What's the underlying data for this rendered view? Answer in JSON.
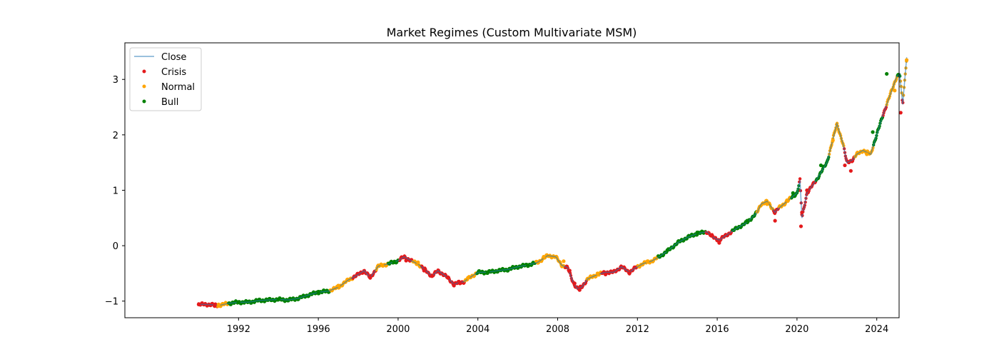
{
  "chart_data": {
    "type": "line",
    "title": "Market Regimes (Custom Multivariate MSM)",
    "xlabel": "",
    "ylabel": "",
    "xlim": [
      1986.3,
      2025.12
    ],
    "ylim": [
      -1.3,
      3.66
    ],
    "x_ticks": [
      1992,
      1996,
      2000,
      2004,
      2008,
      2012,
      2016,
      2020,
      2024
    ],
    "y_ticks": [
      -1,
      0,
      1,
      2,
      3
    ],
    "grid": false,
    "legend_placement": "top-left",
    "legend": [
      "Close",
      "Crisis",
      "Normal",
      "Bull"
    ],
    "colors": {
      "Close": "#1f77b4",
      "Crisis": "#e41a1c",
      "Normal": "#ffa500",
      "Bull": "#008000"
    },
    "series": [
      {
        "name": "Close",
        "x": [
          1990.0,
          1990.5,
          1991.0,
          1991.5,
          1992.0,
          1992.5,
          1993.0,
          1993.5,
          1994.0,
          1994.5,
          1995.0,
          1995.5,
          1996.0,
          1996.5,
          1997.0,
          1997.5,
          1998.0,
          1998.3,
          1998.6,
          1999.0,
          1999.5,
          2000.0,
          2000.3,
          2000.7,
          2001.0,
          2001.3,
          2001.7,
          2002.0,
          2002.5,
          2002.8,
          2003.0,
          2003.3,
          2003.7,
          2004.0,
          2004.5,
          2005.0,
          2005.5,
          2006.0,
          2006.5,
          2007.0,
          2007.5,
          2007.9,
          2008.2,
          2008.5,
          2008.8,
          2009.0,
          2009.2,
          2009.5,
          2010.0,
          2010.4,
          2010.8,
          2011.2,
          2011.6,
          2011.9,
          2012.3,
          2012.7,
          2013.0,
          2013.5,
          2014.0,
          2014.5,
          2015.0,
          2015.5,
          2015.8,
          2016.1,
          2016.5,
          2017.0,
          2017.5,
          2018.0,
          2018.2,
          2018.5,
          2018.9,
          2019.0,
          2019.5,
          2020.0,
          2020.15,
          2020.25,
          2020.5,
          2021.0,
          2021.5,
          2022.0,
          2022.3,
          2022.5,
          2022.8,
          2023.0,
          2023.3,
          2023.7,
          2023.8,
          2024.0,
          2024.3,
          2024.6,
          2025.0,
          2025.15,
          2025.3,
          2025.5
        ],
        "y": [
          -1.06,
          -1.06,
          -1.08,
          -1.04,
          -1.02,
          -1.02,
          -0.99,
          -0.98,
          -0.97,
          -0.98,
          -0.95,
          -0.89,
          -0.84,
          -0.82,
          -0.75,
          -0.62,
          -0.52,
          -0.45,
          -0.58,
          -0.37,
          -0.33,
          -0.27,
          -0.2,
          -0.28,
          -0.33,
          -0.42,
          -0.55,
          -0.45,
          -0.58,
          -0.7,
          -0.67,
          -0.65,
          -0.55,
          -0.48,
          -0.48,
          -0.45,
          -0.43,
          -0.38,
          -0.35,
          -0.3,
          -0.18,
          -0.2,
          -0.35,
          -0.4,
          -0.68,
          -0.78,
          -0.75,
          -0.6,
          -0.52,
          -0.48,
          -0.48,
          -0.38,
          -0.48,
          -0.4,
          -0.32,
          -0.28,
          -0.22,
          -0.1,
          0.05,
          0.15,
          0.22,
          0.25,
          0.15,
          0.1,
          0.2,
          0.32,
          0.42,
          0.6,
          0.75,
          0.8,
          0.6,
          0.65,
          0.8,
          0.95,
          1.18,
          0.5,
          0.95,
          1.2,
          1.5,
          2.2,
          1.85,
          1.5,
          1.55,
          1.65,
          1.72,
          1.65,
          1.78,
          2.0,
          2.35,
          2.65,
          3.05,
          3.1,
          2.55,
          3.4
        ]
      },
      {
        "name": "Crisis",
        "points": [
          [
            1990.0,
            -1.06
          ],
          [
            1990.8,
            -1.09
          ],
          [
            1998.6,
            -0.58
          ],
          [
            2000.4,
            -0.27
          ],
          [
            2001.3,
            -0.45
          ],
          [
            2001.7,
            -0.55
          ],
          [
            2002.5,
            -0.58
          ],
          [
            2002.8,
            -0.72
          ],
          [
            2003.1,
            -0.68
          ],
          [
            2008.6,
            -0.45
          ],
          [
            2008.85,
            -0.68
          ],
          [
            2009.1,
            -0.8
          ],
          [
            2010.4,
            -0.52
          ],
          [
            2011.6,
            -0.5
          ],
          [
            2015.7,
            0.18
          ],
          [
            2016.1,
            0.05
          ],
          [
            2018.9,
            0.45
          ],
          [
            2020.2,
            0.35
          ],
          [
            2020.25,
            0.6
          ],
          [
            2020.5,
            1.0
          ],
          [
            2022.4,
            1.45
          ],
          [
            2022.7,
            1.35
          ],
          [
            2025.2,
            2.4
          ]
        ]
      },
      {
        "name": "Normal",
        "points": [
          [
            1991.0,
            -1.06
          ],
          [
            1997.0,
            -0.72
          ],
          [
            1999.2,
            -0.35
          ],
          [
            2001.0,
            -0.3
          ],
          [
            2003.5,
            -0.58
          ],
          [
            2007.3,
            -0.2
          ],
          [
            2008.3,
            -0.28
          ],
          [
            2010.0,
            -0.5
          ],
          [
            2012.5,
            -0.28
          ],
          [
            2018.5,
            0.75
          ],
          [
            2019.5,
            0.82
          ],
          [
            2021.8,
            1.9
          ],
          [
            2023.5,
            1.65
          ],
          [
            2024.9,
            2.8
          ],
          [
            2025.5,
            3.35
          ]
        ]
      },
      {
        "name": "Bull",
        "points": [
          [
            1992.0,
            -1.02
          ],
          [
            1994.0,
            -0.97
          ],
          [
            1996.0,
            -0.83
          ],
          [
            1999.8,
            -0.3
          ],
          [
            2004.5,
            -0.48
          ],
          [
            2006.5,
            -0.35
          ],
          [
            2013.5,
            -0.08
          ],
          [
            2015.0,
            0.24
          ],
          [
            2017.5,
            0.45
          ],
          [
            2019.8,
            0.95
          ],
          [
            2021.2,
            1.45
          ],
          [
            2023.8,
            2.05
          ],
          [
            2024.5,
            3.1
          ]
        ]
      }
    ]
  }
}
